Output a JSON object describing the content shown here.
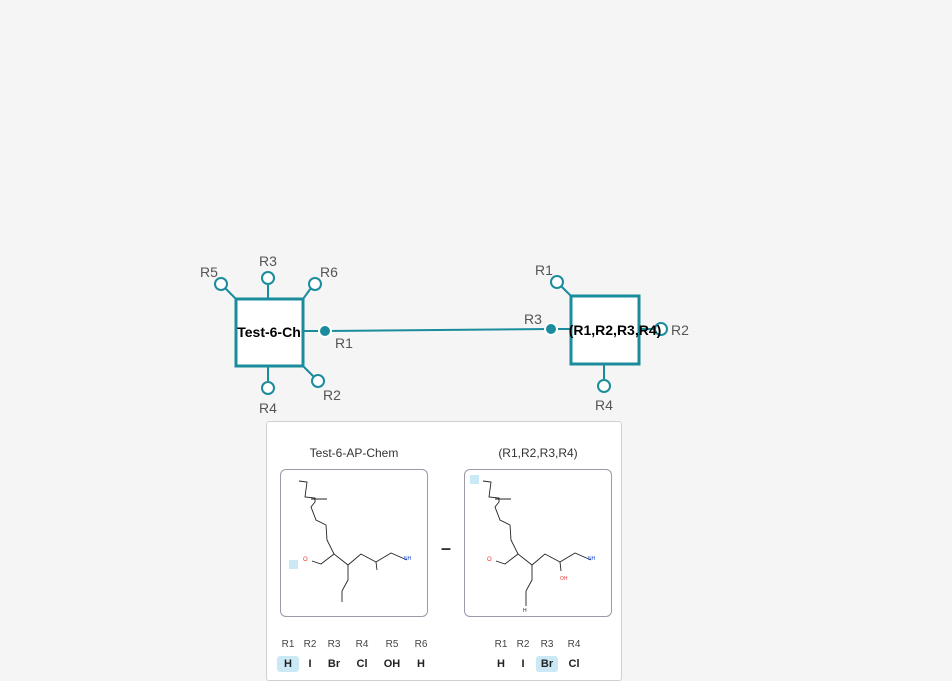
{
  "canvas": {
    "left_monomer": {
      "label": "Test-6-Ch",
      "attachment_points": [
        "R5",
        "R3",
        "R6",
        "R1",
        "R2",
        "R4"
      ]
    },
    "right_monomer": {
      "label": "(R1,R2,R3,R4)",
      "attachment_points": [
        "R1",
        "R3",
        "R2",
        "R4"
      ]
    },
    "colors": {
      "accent": "#1a8c9c",
      "label": "#555555"
    }
  },
  "preview": {
    "left": {
      "title": "Test-6-AP-Chem",
      "atom_labels": {
        "o": "O",
        "nh": "NH"
      },
      "ap_table": [
        {
          "r": "R1",
          "v": "H",
          "selected": true
        },
        {
          "r": "R2",
          "v": "I",
          "selected": false
        },
        {
          "r": "R3",
          "v": "Br",
          "selected": false
        },
        {
          "r": "R4",
          "v": "Cl",
          "selected": false
        },
        {
          "r": "R5",
          "v": "OH",
          "selected": false
        },
        {
          "r": "R6",
          "v": "H",
          "selected": false
        }
      ]
    },
    "separator": "–",
    "right": {
      "title": "(R1,R2,R3,R4)",
      "atom_labels": {
        "o": "O",
        "nh": "NH",
        "oh": "OH",
        "h": "H"
      },
      "ap_table": [
        {
          "r": "R1",
          "v": "H",
          "selected": false
        },
        {
          "r": "R2",
          "v": "I",
          "selected": false
        },
        {
          "r": "R3",
          "v": "Br",
          "selected": true
        },
        {
          "r": "R4",
          "v": "Cl",
          "selected": false
        }
      ]
    }
  }
}
